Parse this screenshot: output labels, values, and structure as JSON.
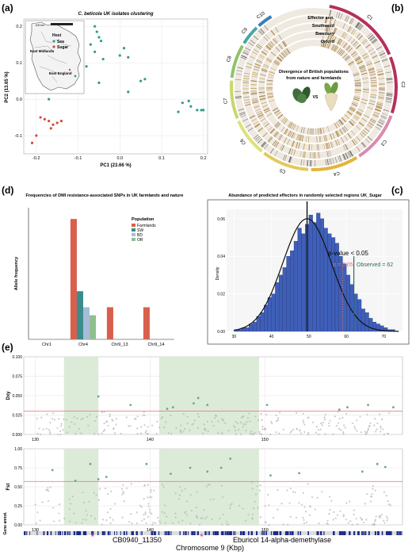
{
  "panels": {
    "a": "(a)",
    "b": "(b)",
    "c": "(c)",
    "d": "(d)",
    "e": "(e)"
  },
  "colors": {
    "sea": "#2f9d8a",
    "sugar": "#d9483b",
    "farmlands": "#d95f4c",
    "sw": "#3b8c8c",
    "bd": "#a8bcd9",
    "or": "#8fbf8f",
    "hist": "#3f5fb8",
    "threshold": "#e88a8a",
    "shade": "#dcebd8",
    "effector": "#9b1b3a"
  },
  "chart_data": [
    {
      "id": "a",
      "type": "scatter",
      "title": "C. beticola UK isolates clustering",
      "xlabel": "PC1 (23.66 %)",
      "ylabel": "PC2 (13.65 %)",
      "xlim": [
        -0.23,
        0.21
      ],
      "ylim": [
        -0.15,
        0.22
      ],
      "xticks": [
        "-0.2",
        "-0.1",
        "0.0",
        "0.1",
        "0.2"
      ],
      "yticks": [
        "-0.1",
        "0.0",
        "0.1",
        "0.2"
      ],
      "legend_title": "Host",
      "legend": [
        "Sea",
        "Sugar"
      ],
      "map_labels": [
        "East Midlands",
        "East England"
      ],
      "scalebar": "100 km",
      "series": [
        {
          "name": "Sea",
          "points": [
            [
              -0.06,
              0.2
            ],
            [
              -0.055,
              0.185
            ],
            [
              -0.05,
              0.17
            ],
            [
              -0.045,
              0.16
            ],
            [
              -0.07,
              0.15
            ],
            [
              -0.06,
              0.13
            ],
            [
              -0.04,
              0.11
            ],
            [
              0.01,
              0.14
            ],
            [
              0.0,
              0.12
            ],
            [
              0.02,
              0.115
            ],
            [
              -0.08,
              0.09
            ],
            [
              -0.1,
              0.07
            ],
            [
              0.05,
              0.05
            ],
            [
              0.06,
              0.055
            ],
            [
              -0.05,
              0.045
            ],
            [
              0.02,
              0.02
            ],
            [
              0.15,
              -0.01
            ],
            [
              0.165,
              -0.005
            ],
            [
              0.17,
              -0.02
            ],
            [
              0.185,
              -0.03
            ],
            [
              0.195,
              -0.03
            ],
            [
              0.2,
              -0.03
            ],
            [
              0.14,
              -0.035
            ],
            [
              -0.17,
              0.0
            ]
          ]
        },
        {
          "name": "Sugar",
          "points": [
            [
              -0.2,
              -0.1
            ],
            [
              -0.21,
              -0.12
            ],
            [
              -0.18,
              -0.055
            ],
            [
              -0.17,
              -0.06
            ],
            [
              -0.16,
              -0.07
            ],
            [
              -0.15,
              -0.065
            ],
            [
              -0.14,
              -0.06
            ],
            [
              -0.165,
              -0.08
            ],
            [
              -0.19,
              -0.05
            ]
          ]
        }
      ]
    },
    {
      "id": "b",
      "type": "other",
      "title": "Divergence of British populations from nature and farmlands",
      "track_labels": [
        "Effector ann.",
        "Southwold",
        "Bawdsey",
        "Orford"
      ],
      "vs_label": "VS",
      "chromosomes": [
        "C1",
        "C2",
        "C3",
        "C4",
        "C5",
        "C6",
        "C7",
        "C8",
        "C9",
        "C10"
      ]
    },
    {
      "id": "c",
      "type": "bar",
      "title": "Abundance of predicted effectors in randomly selected regions  UK_Sugar",
      "xlabel": "",
      "ylabel": "Density",
      "xlim": [
        28,
        75
      ],
      "ylim": [
        0,
        0.065
      ],
      "xticks": [
        "30",
        "40",
        "50",
        "60",
        "70"
      ],
      "yticks": [
        "0.00",
        "0.02",
        "0.04",
        "0.06"
      ],
      "bin_start": 30,
      "bin_width": 1,
      "values": [
        0.001,
        0.001,
        0.002,
        0.002,
        0.004,
        0.005,
        0.008,
        0.01,
        0.014,
        0.018,
        0.02,
        0.026,
        0.03,
        0.034,
        0.04,
        0.043,
        0.048,
        0.055,
        0.052,
        0.057,
        0.062,
        0.058,
        0.063,
        0.06,
        0.055,
        0.052,
        0.05,
        0.047,
        0.04,
        0.036,
        0.03,
        0.025,
        0.02,
        0.017,
        0.012,
        0.01,
        0.007,
        0.005,
        0.004,
        0.003,
        0.002,
        0.001,
        0.001
      ],
      "mean_line": 49.5,
      "alpha_line": 59,
      "observed_line": 62,
      "annotations": {
        "pvalue": "p-value < 0.05",
        "alpha": "α = 0.05",
        "observed": "Observed = 62"
      }
    },
    {
      "id": "d",
      "type": "bar",
      "title": "Frequencies of DMI resistance-associated SNPs in UK farmlands and nature",
      "xlabel": "",
      "ylabel": "Allele frequency",
      "ylim": [
        0,
        0.82
      ],
      "categories": [
        "Chr1",
        "Chr4",
        "Chr9_13",
        "Chr9_14"
      ],
      "legend_title": "Population",
      "series": [
        {
          "name": "Farmlands",
          "values": [
            0,
            0.75,
            0.2,
            0.2
          ]
        },
        {
          "name": "SW",
          "values": [
            0,
            0.3,
            0,
            0
          ]
        },
        {
          "name": "BD",
          "values": [
            0,
            0.2,
            0,
            0
          ]
        },
        {
          "name": "OR",
          "values": [
            0,
            0.15,
            0,
            0
          ]
        }
      ]
    },
    {
      "id": "e",
      "type": "scatter",
      "xlabel": "Chromosome 9 (Kbp)",
      "xlim": [
        129,
        162
      ],
      "xticks": [
        "130",
        "140",
        "150"
      ],
      "shaded": [
        [
          132.5,
          135.5
        ],
        [
          140.8,
          149.5
        ]
      ],
      "gene_label": "Gene annot.",
      "genes": [
        {
          "name": "CB0940_11350",
          "x": 135.0
        },
        {
          "name": "Eburicol 14-alpha-demethylase",
          "x": 144.5
        }
      ],
      "tracks": [
        {
          "ylabel": "Dxy",
          "ylim": [
            0,
            0.1
          ],
          "yticks": [
            "0.000",
            "0.025",
            "0.050",
            "0.075",
            "0.100"
          ],
          "threshold": 0.03,
          "outliers": [
            [
              135.5,
              0.049
            ],
            [
              138.3,
              0.038
            ],
            [
              141.5,
              0.033
            ],
            [
              142.0,
              0.035
            ],
            [
              143.8,
              0.04
            ],
            [
              144.2,
              0.047
            ],
            [
              145.0,
              0.038
            ],
            [
              150.2,
              0.038
            ],
            [
              156.5,
              0.032
            ],
            [
              157.2,
              0.035
            ],
            [
              159.0,
              0.038
            ],
            [
              161.2,
              0.035
            ]
          ]
        },
        {
          "ylabel": "Fst",
          "ylim": [
            0,
            1.0
          ],
          "yticks": [
            "0.00",
            "0.25",
            "0.50",
            "0.75",
            "1.00"
          ],
          "threshold": 0.57,
          "outliers": [
            [
              131.5,
              0.72
            ],
            [
              133.5,
              0.58
            ],
            [
              134.8,
              0.8
            ],
            [
              135.5,
              0.6
            ],
            [
              136.2,
              0.63
            ],
            [
              139.7,
              0.8
            ],
            [
              141.8,
              0.67
            ],
            [
              143.5,
              0.75
            ],
            [
              145.0,
              0.7
            ],
            [
              146.2,
              0.75
            ],
            [
              147.0,
              0.87
            ],
            [
              150.5,
              0.65
            ],
            [
              153.0,
              0.68
            ],
            [
              158.5,
              0.7
            ],
            [
              159.8,
              0.8
            ],
            [
              160.5,
              0.76
            ]
          ]
        }
      ]
    }
  ]
}
